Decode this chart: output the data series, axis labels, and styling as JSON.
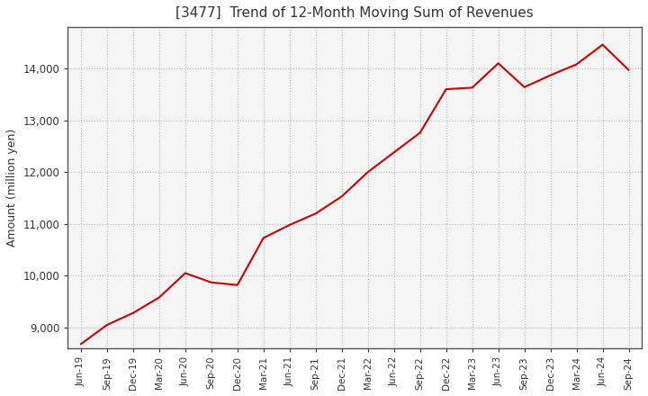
{
  "title": "[3477]  Trend of 12-Month Moving Sum of Revenues",
  "ylabel": "Amount (million yen)",
  "line_color": "#cc0000",
  "background_color": "#ffffff",
  "plot_bg_color": "#f5f5f5",
  "grid_color": "#bbbbbb",
  "title_color": "#333333",
  "ylim": [
    8600,
    14800
  ],
  "yticks": [
    9000,
    10000,
    11000,
    12000,
    13000,
    14000
  ],
  "x_labels": [
    "Jun-19",
    "Sep-19",
    "Dec-19",
    "Mar-20",
    "Jun-20",
    "Sep-20",
    "Dec-20",
    "Mar-21",
    "Jun-21",
    "Sep-21",
    "Dec-21",
    "Mar-22",
    "Jun-22",
    "Sep-22",
    "Dec-22",
    "Mar-23",
    "Jun-23",
    "Sep-23",
    "Dec-23",
    "Mar-24",
    "Jun-24",
    "Sep-24"
  ],
  "values": [
    8680,
    9050,
    9280,
    9580,
    10050,
    9870,
    9820,
    10730,
    10980,
    11200,
    11530,
    12000,
    12380,
    12760,
    13600,
    13630,
    14100,
    13640,
    13870,
    14080,
    14460,
    13970
  ]
}
